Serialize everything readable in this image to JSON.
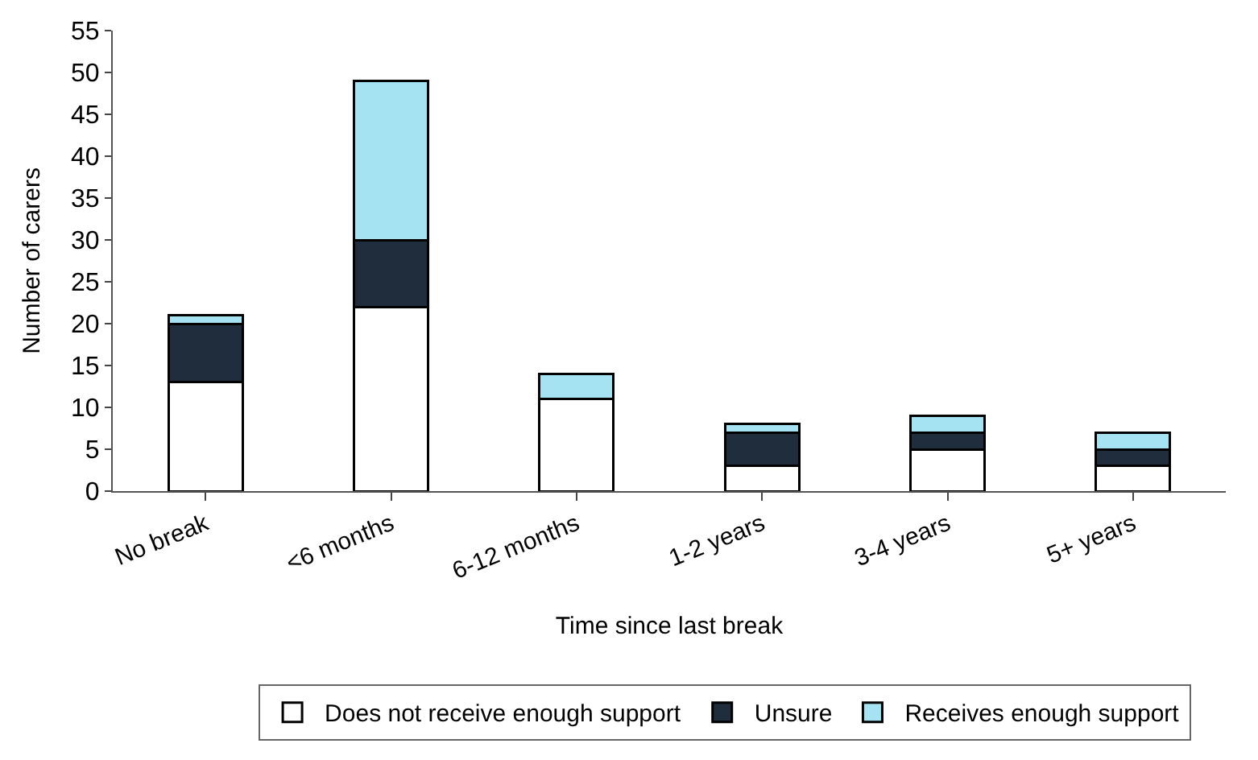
{
  "chart_data": {
    "type": "bar",
    "stacked": true,
    "xlabel": "Time since last break",
    "ylabel": "Number of carers",
    "categories": [
      "No break",
      "<6 months",
      "6-12 months",
      "1-2 years",
      "3-4 years",
      "5+ years"
    ],
    "series": [
      {
        "name": "Does not receive enough support",
        "color": "#ffffff",
        "values": [
          13,
          22,
          11,
          3,
          5,
          3
        ]
      },
      {
        "name": "Unsure",
        "color": "#1f2d3d",
        "values": [
          7,
          8,
          0,
          4,
          2,
          2
        ]
      },
      {
        "name": "Receives enough support",
        "color": "#a6e3f2",
        "values": [
          1,
          19,
          3,
          1,
          2,
          2
        ]
      }
    ],
    "ylim": [
      0,
      55
    ],
    "yticks": [
      0,
      5,
      10,
      15,
      20,
      25,
      30,
      35,
      40,
      45,
      50,
      55
    ],
    "grid": false,
    "legend": "bottom"
  }
}
